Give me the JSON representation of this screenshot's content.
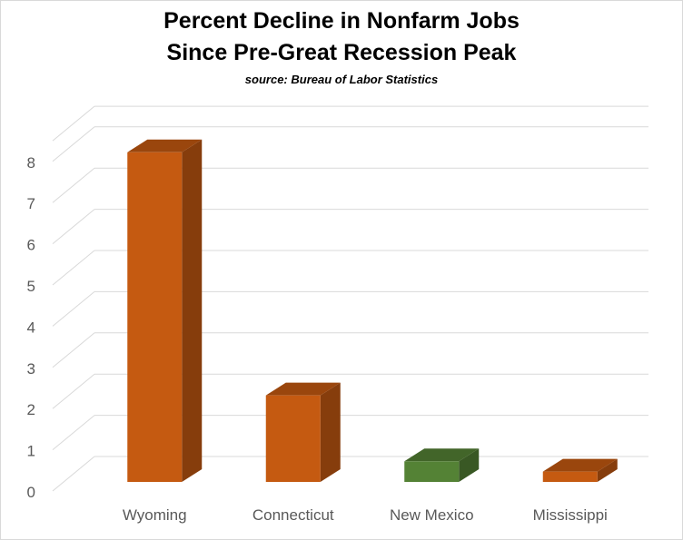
{
  "chart_data": {
    "type": "bar",
    "title_lines": [
      "Percent Decline in Nonfarm Jobs",
      "Since Pre-Great Recession Peak"
    ],
    "subtitle": "source: Bureau of Labor Statistics",
    "categories": [
      "Wyoming",
      "Connecticut",
      "New Mexico",
      "Mississippi"
    ],
    "values": [
      8.0,
      2.1,
      0.5,
      0.25
    ],
    "bar_colors": [
      "#c55a11",
      "#c55a11",
      "#548235",
      "#c55a11"
    ],
    "y_ticks": [
      0,
      1,
      2,
      3,
      4,
      5,
      6,
      7,
      8
    ],
    "ylim": [
      0,
      8.5
    ],
    "grid": true,
    "legend": "none",
    "style": "3d-column"
  }
}
